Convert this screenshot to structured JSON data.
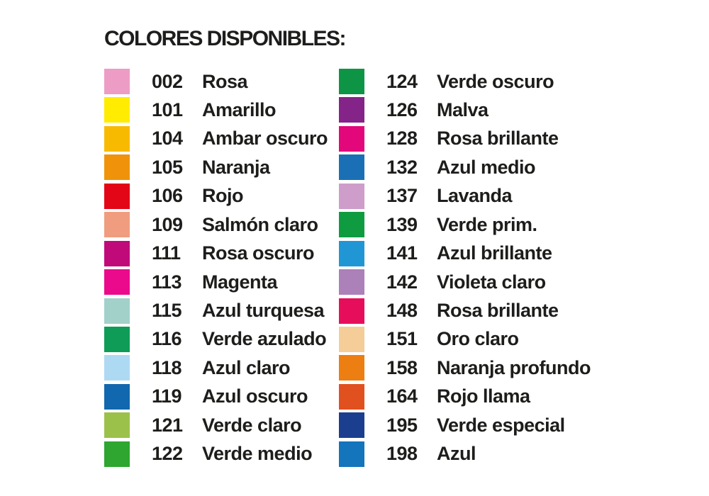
{
  "title": "COLORES DISPONIBLES:",
  "text_color": "#1d1d1b",
  "background_color": "#ffffff",
  "columns": [
    {
      "rows": [
        {
          "code": "002",
          "name": "Rosa",
          "hex": "#ED9CC5"
        },
        {
          "code": "101",
          "name": "Amarillo",
          "hex": "#FFEC00"
        },
        {
          "code": "104",
          "name": "Ambar oscuro",
          "hex": "#F8BA00"
        },
        {
          "code": "105",
          "name": "Naranja",
          "hex": "#F0930B"
        },
        {
          "code": "106",
          "name": "Rojo",
          "hex": "#E30617"
        },
        {
          "code": "109",
          "name": "Salmón claro",
          "hex": "#F09D7F"
        },
        {
          "code": "111",
          "name": "Rosa oscuro",
          "hex": "#C10A7A"
        },
        {
          "code": "113",
          "name": "Magenta",
          "hex": "#EB0A8C"
        },
        {
          "code": "115",
          "name": "Azul turquesa",
          "hex": "#A2D1C9"
        },
        {
          "code": "116",
          "name": "Verde azulado",
          "hex": "#0E9C57"
        },
        {
          "code": "118",
          "name": "Azul claro",
          "hex": "#AED9F2"
        },
        {
          "code": "119",
          "name": "Azul oscuro",
          "hex": "#1168AE"
        },
        {
          "code": "121",
          "name": "Verde claro",
          "hex": "#9CC14B"
        },
        {
          "code": "122",
          "name": "Verde medio",
          "hex": "#2EA62F"
        }
      ]
    },
    {
      "rows": [
        {
          "code": "124",
          "name": "Verde oscuro",
          "hex": "#0D9545"
        },
        {
          "code": "126",
          "name": "Malva",
          "hex": "#842488"
        },
        {
          "code": "128",
          "name": "Rosa brillante",
          "hex": "#E2077B"
        },
        {
          "code": "132",
          "name": "Azul medio",
          "hex": "#1B70B5"
        },
        {
          "code": "137",
          "name": "Lavanda",
          "hex": "#CE9DCA"
        },
        {
          "code": "139",
          "name": "Verde prim.",
          "hex": "#0F9C40"
        },
        {
          "code": "141",
          "name": "Azul brillante",
          "hex": "#2196D5"
        },
        {
          "code": "142",
          "name": "Violeta claro",
          "hex": "#AC80B8"
        },
        {
          "code": "148",
          "name": "Rosa brillante",
          "hex": "#E60E5B"
        },
        {
          "code": "151",
          "name": "Oro claro",
          "hex": "#F4CD99"
        },
        {
          "code": "158",
          "name": "Naranja profundo",
          "hex": "#EC7E12"
        },
        {
          "code": "164",
          "name": "Rojo llama",
          "hex": "#E1511F"
        },
        {
          "code": "195",
          "name": "Verde especial",
          "hex": "#1B3E8F"
        },
        {
          "code": "198",
          "name": "Azul",
          "hex": "#1474BC"
        }
      ]
    }
  ]
}
